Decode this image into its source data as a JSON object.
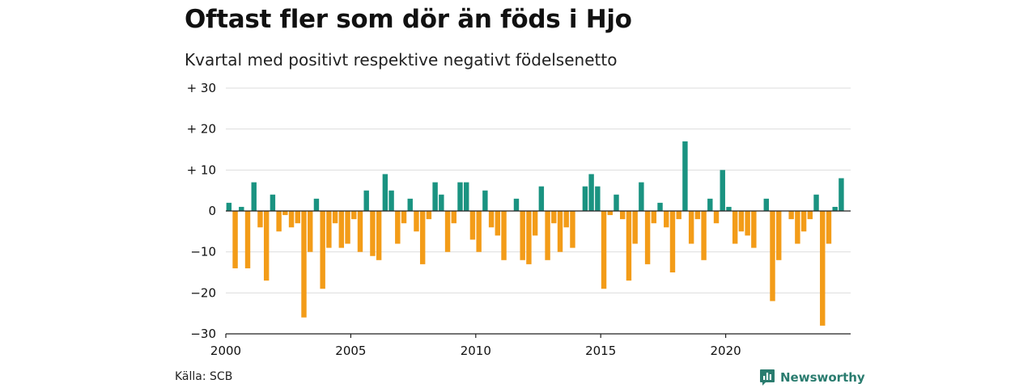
{
  "title": "Oftast fler som dör än föds i Hjo",
  "subtitle": "Kvartal med positivt respektive negativt födelsenetto",
  "source": "Källa: SCB",
  "brand": {
    "name": "Newsworthy",
    "icon": "newsworthy-logo-icon",
    "color": "#2a7c6f"
  },
  "colors": {
    "positive": "#1a9381",
    "negative": "#f39c18",
    "grid": "#dddddd",
    "axis": "#222222"
  },
  "chart_data": {
    "type": "bar",
    "title": "Oftast fler som dör än föds i Hjo",
    "subtitle": "Kvartal med positivt respektive negativt födelsenetto",
    "x_start": 2000,
    "periods_per_year": 4,
    "xlim": [
      2000,
      2025
    ],
    "ylim": [
      -30,
      30
    ],
    "yticks": [
      30,
      20,
      10,
      0,
      -10,
      -20,
      -30
    ],
    "ytick_labels": [
      "+ 30",
      "+ 20",
      "+ 10",
      "0",
      "−10",
      "−20",
      "−30"
    ],
    "xticks": [
      2000,
      2005,
      2010,
      2015,
      2020
    ],
    "xtick_labels": [
      "2000",
      "2005",
      "2010",
      "2015",
      "2020"
    ],
    "grid": true,
    "values": [
      2,
      -14,
      1,
      -14,
      7,
      -4,
      -17,
      4,
      -5,
      -1,
      -4,
      -3,
      -26,
      -10,
      3,
      -19,
      -9,
      -3,
      -9,
      -8,
      -2,
      -10,
      5,
      -11,
      -12,
      9,
      5,
      -8,
      -3,
      3,
      -5,
      -13,
      -2,
      7,
      4,
      -10,
      -3,
      7,
      7,
      -7,
      -10,
      5,
      -4,
      -6,
      -12,
      0,
      3,
      -12,
      -13,
      -6,
      6,
      -12,
      -3,
      -10,
      -4,
      -9,
      0,
      6,
      9,
      6,
      -19,
      -1,
      4,
      -2,
      -17,
      -8,
      7,
      -13,
      -3,
      2,
      -4,
      -15,
      -2,
      17,
      -8,
      -2,
      -12,
      3,
      -3,
      10,
      1,
      -8,
      -5,
      -6,
      -9,
      0,
      3,
      -22,
      -12,
      0,
      -2,
      -8,
      -5,
      -2,
      4,
      -28,
      -8,
      1,
      8
    ]
  }
}
